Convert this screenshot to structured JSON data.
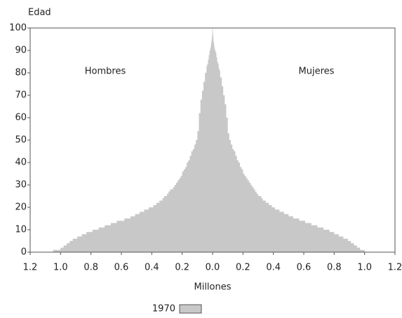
{
  "chart_data": {
    "type": "pyramid",
    "y_label": "Edad",
    "x_label": "Millones",
    "legend_label": "1970",
    "color": "#c8c8c8",
    "y": [
      0,
      1,
      2,
      3,
      4,
      5,
      6,
      7,
      8,
      9,
      10,
      11,
      12,
      13,
      14,
      15,
      16,
      17,
      18,
      19,
      20,
      21,
      22,
      23,
      24,
      25,
      26,
      27,
      28,
      29,
      30,
      31,
      32,
      33,
      34,
      35,
      36,
      37,
      38,
      39,
      40,
      41,
      42,
      43,
      44,
      45,
      46,
      47,
      48,
      49,
      50,
      51,
      52,
      53,
      54,
      55,
      56,
      57,
      58,
      59,
      60,
      61,
      62,
      63,
      64,
      65,
      66,
      67,
      68,
      69,
      70,
      71,
      72,
      73,
      74,
      75,
      76,
      77,
      78,
      79,
      80,
      81,
      82,
      83,
      84,
      85,
      86,
      87,
      88,
      89,
      90,
      91,
      92,
      93,
      94,
      95,
      96,
      97,
      98,
      99,
      100
    ],
    "series": [
      {
        "name": "Hombres",
        "values": [
          -1.05,
          -1.0,
          -0.98,
          -0.96,
          -0.94,
          -0.92,
          -0.89,
          -0.86,
          -0.83,
          -0.79,
          -0.75,
          -0.71,
          -0.67,
          -0.63,
          -0.58,
          -0.54,
          -0.51,
          -0.48,
          -0.45,
          -0.42,
          -0.39,
          -0.37,
          -0.35,
          -0.33,
          -0.32,
          -0.3,
          -0.29,
          -0.28,
          -0.26,
          -0.25,
          -0.24,
          -0.23,
          -0.22,
          -0.21,
          -0.2,
          -0.2,
          -0.19,
          -0.18,
          -0.17,
          -0.17,
          -0.16,
          -0.15,
          -0.15,
          -0.14,
          -0.14,
          -0.13,
          -0.12,
          -0.12,
          -0.11,
          -0.11,
          -0.1,
          -0.1,
          -0.1,
          -0.1,
          -0.09,
          -0.09,
          -0.09,
          -0.09,
          -0.09,
          -0.09,
          -0.09,
          -0.09,
          -0.08,
          -0.08,
          -0.08,
          -0.08,
          -0.08,
          -0.08,
          -0.07,
          -0.07,
          -0.07,
          -0.07,
          -0.06,
          -0.06,
          -0.06,
          -0.06,
          -0.05,
          -0.05,
          -0.05,
          -0.05,
          -0.04,
          -0.04,
          -0.04,
          -0.035,
          -0.03,
          -0.03,
          -0.025,
          -0.025,
          -0.02,
          -0.02,
          -0.015,
          -0.012,
          -0.01,
          -0.008,
          -0.006,
          -0.004,
          -0.003,
          -0.002,
          -0.002,
          -0.001,
          -0.001
        ]
      },
      {
        "name": "Mujeres",
        "values": [
          1.0,
          0.97,
          0.95,
          0.93,
          0.91,
          0.89,
          0.86,
          0.83,
          0.8,
          0.77,
          0.73,
          0.69,
          0.65,
          0.61,
          0.57,
          0.53,
          0.5,
          0.47,
          0.44,
          0.41,
          0.39,
          0.37,
          0.35,
          0.33,
          0.32,
          0.3,
          0.29,
          0.28,
          0.27,
          0.26,
          0.25,
          0.24,
          0.23,
          0.22,
          0.21,
          0.2,
          0.2,
          0.19,
          0.18,
          0.18,
          0.17,
          0.16,
          0.16,
          0.15,
          0.15,
          0.14,
          0.13,
          0.13,
          0.12,
          0.12,
          0.11,
          0.11,
          0.11,
          0.1,
          0.1,
          0.1,
          0.1,
          0.1,
          0.1,
          0.1,
          0.09,
          0.09,
          0.09,
          0.09,
          0.09,
          0.09,
          0.08,
          0.08,
          0.08,
          0.08,
          0.07,
          0.07,
          0.07,
          0.07,
          0.06,
          0.06,
          0.06,
          0.06,
          0.05,
          0.05,
          0.05,
          0.045,
          0.04,
          0.04,
          0.035,
          0.03,
          0.03,
          0.025,
          0.025,
          0.02,
          0.015,
          0.012,
          0.01,
          0.008,
          0.006,
          0.005,
          0.004,
          0.003,
          0.002,
          0.001,
          0.001
        ]
      }
    ],
    "xlim": [
      -1.2,
      1.2
    ],
    "xticks": [
      {
        "value": -1.2,
        "label": "1.2"
      },
      {
        "value": -1.0,
        "label": "1.0"
      },
      {
        "value": -0.8,
        "label": "0.8"
      },
      {
        "value": -0.6,
        "label": "0.6"
      },
      {
        "value": -0.4,
        "label": "0.4"
      },
      {
        "value": -0.2,
        "label": "0.2"
      },
      {
        "value": 0,
        "label": "0.0"
      },
      {
        "value": 0.2,
        "label": "0.2"
      },
      {
        "value": 0.4,
        "label": "0.4"
      },
      {
        "value": 0.6,
        "label": "0.6"
      },
      {
        "value": 0.8,
        "label": "0.8"
      },
      {
        "value": 1.0,
        "label": "1.0"
      },
      {
        "value": 1.2,
        "label": "1.2"
      }
    ],
    "ylim": [
      0,
      100
    ],
    "yticks": [
      0,
      10,
      20,
      30,
      40,
      50,
      60,
      70,
      80,
      90,
      100
    ]
  }
}
